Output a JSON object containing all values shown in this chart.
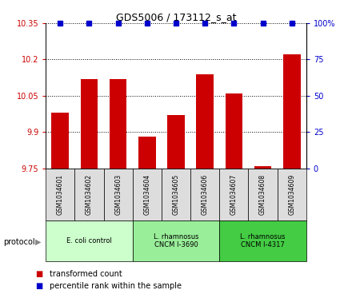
{
  "title": "GDS5006 / 173112_s_at",
  "samples": [
    "GSM1034601",
    "GSM1034602",
    "GSM1034603",
    "GSM1034604",
    "GSM1034605",
    "GSM1034606",
    "GSM1034607",
    "GSM1034608",
    "GSM1034609"
  ],
  "transformed_counts": [
    9.98,
    10.12,
    10.12,
    9.88,
    9.97,
    10.14,
    10.06,
    9.76,
    10.22
  ],
  "percentile_ranks": [
    100,
    100,
    100,
    100,
    100,
    100,
    100,
    100,
    100
  ],
  "ylim_left": [
    9.75,
    10.35
  ],
  "ylim_right": [
    0,
    100
  ],
  "yticks_left": [
    9.75,
    9.9,
    10.05,
    10.2,
    10.35
  ],
  "yticks_right": [
    0,
    25,
    50,
    75,
    100
  ],
  "groups": [
    {
      "label": "E. coli control",
      "indices": [
        0,
        1,
        2
      ],
      "color": "#ccffcc"
    },
    {
      "label": "L. rhamnosus\nCNCM I-3690",
      "indices": [
        3,
        4,
        5
      ],
      "color": "#99ee99"
    },
    {
      "label": "L. rhamnosus\nCNCM I-4317",
      "indices": [
        6,
        7,
        8
      ],
      "color": "#44cc44"
    }
  ],
  "bar_color": "#cc0000",
  "percentile_color": "#0000cc",
  "bar_width": 0.6,
  "background_color": "#ffffff",
  "legend_items": [
    {
      "label": "transformed count",
      "color": "#cc0000"
    },
    {
      "label": "percentile rank within the sample",
      "color": "#0000cc"
    }
  ],
  "sample_box_color": "#dddddd"
}
